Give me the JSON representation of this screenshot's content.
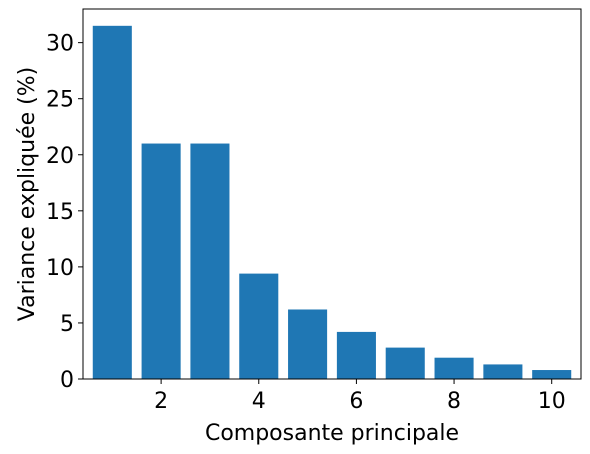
{
  "chart_data": {
    "type": "bar",
    "title": "",
    "xlabel": "Composante principale",
    "ylabel": "Variance expliquée (%)",
    "x": [
      1,
      2,
      3,
      4,
      5,
      6,
      7,
      8,
      9,
      10
    ],
    "values": [
      31.5,
      21.0,
      21.0,
      9.4,
      6.2,
      4.2,
      2.8,
      1.9,
      1.3,
      0.8
    ],
    "xlim": [
      0.4,
      10.6
    ],
    "ylim": [
      0,
      33
    ],
    "xticks": [
      "2",
      "4",
      "6",
      "8",
      "10"
    ],
    "yticks": [
      "0",
      "5",
      "10",
      "15",
      "20",
      "25",
      "30"
    ],
    "bar_color": "#1f77b4",
    "grid": false,
    "legend": "none"
  }
}
